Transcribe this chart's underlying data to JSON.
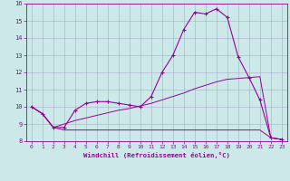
{
  "xlabel": "Windchill (Refroidissement éolien,°C)",
  "bg_color": "#cce8e8",
  "line_color": "#990099",
  "grid_color": "#aaaacc",
  "series1_x": [
    0,
    1,
    2,
    3,
    4,
    5,
    6,
    7,
    8,
    9,
    10,
    11,
    12,
    13,
    14,
    15,
    16,
    17,
    18,
    19,
    20,
    21,
    22,
    23
  ],
  "series1_y": [
    10.0,
    9.6,
    8.8,
    8.8,
    9.8,
    10.2,
    10.3,
    10.3,
    10.2,
    10.1,
    10.0,
    10.6,
    12.0,
    13.0,
    14.5,
    15.5,
    15.4,
    15.7,
    15.2,
    12.9,
    11.7,
    10.4,
    8.2,
    8.1
  ],
  "series2_x": [
    0,
    1,
    2,
    3,
    4,
    5,
    6,
    7,
    8,
    9,
    10,
    11,
    12,
    13,
    14,
    15,
    16,
    17,
    18,
    19,
    20,
    21,
    22,
    23
  ],
  "series2_y": [
    10.0,
    9.6,
    8.8,
    8.65,
    8.65,
    8.65,
    8.65,
    8.65,
    8.65,
    8.65,
    8.65,
    8.65,
    8.65,
    8.65,
    8.65,
    8.65,
    8.65,
    8.65,
    8.65,
    8.65,
    8.65,
    8.65,
    8.2,
    8.1
  ],
  "series3_x": [
    0,
    1,
    2,
    3,
    4,
    5,
    6,
    7,
    8,
    9,
    10,
    11,
    12,
    13,
    14,
    15,
    16,
    17,
    18,
    19,
    20,
    21,
    22,
    23
  ],
  "series3_y": [
    10.0,
    9.6,
    8.8,
    9.0,
    9.2,
    9.35,
    9.5,
    9.65,
    9.8,
    9.9,
    10.05,
    10.2,
    10.4,
    10.6,
    10.8,
    11.05,
    11.25,
    11.45,
    11.6,
    11.65,
    11.7,
    11.75,
    8.2,
    8.1
  ],
  "xlim": [
    -0.5,
    23.5
  ],
  "ylim": [
    8,
    16
  ],
  "xticks": [
    0,
    1,
    2,
    3,
    4,
    5,
    6,
    7,
    8,
    9,
    10,
    11,
    12,
    13,
    14,
    15,
    16,
    17,
    18,
    19,
    20,
    21,
    22,
    23
  ],
  "yticks": [
    8,
    9,
    10,
    11,
    12,
    13,
    14,
    15,
    16
  ]
}
